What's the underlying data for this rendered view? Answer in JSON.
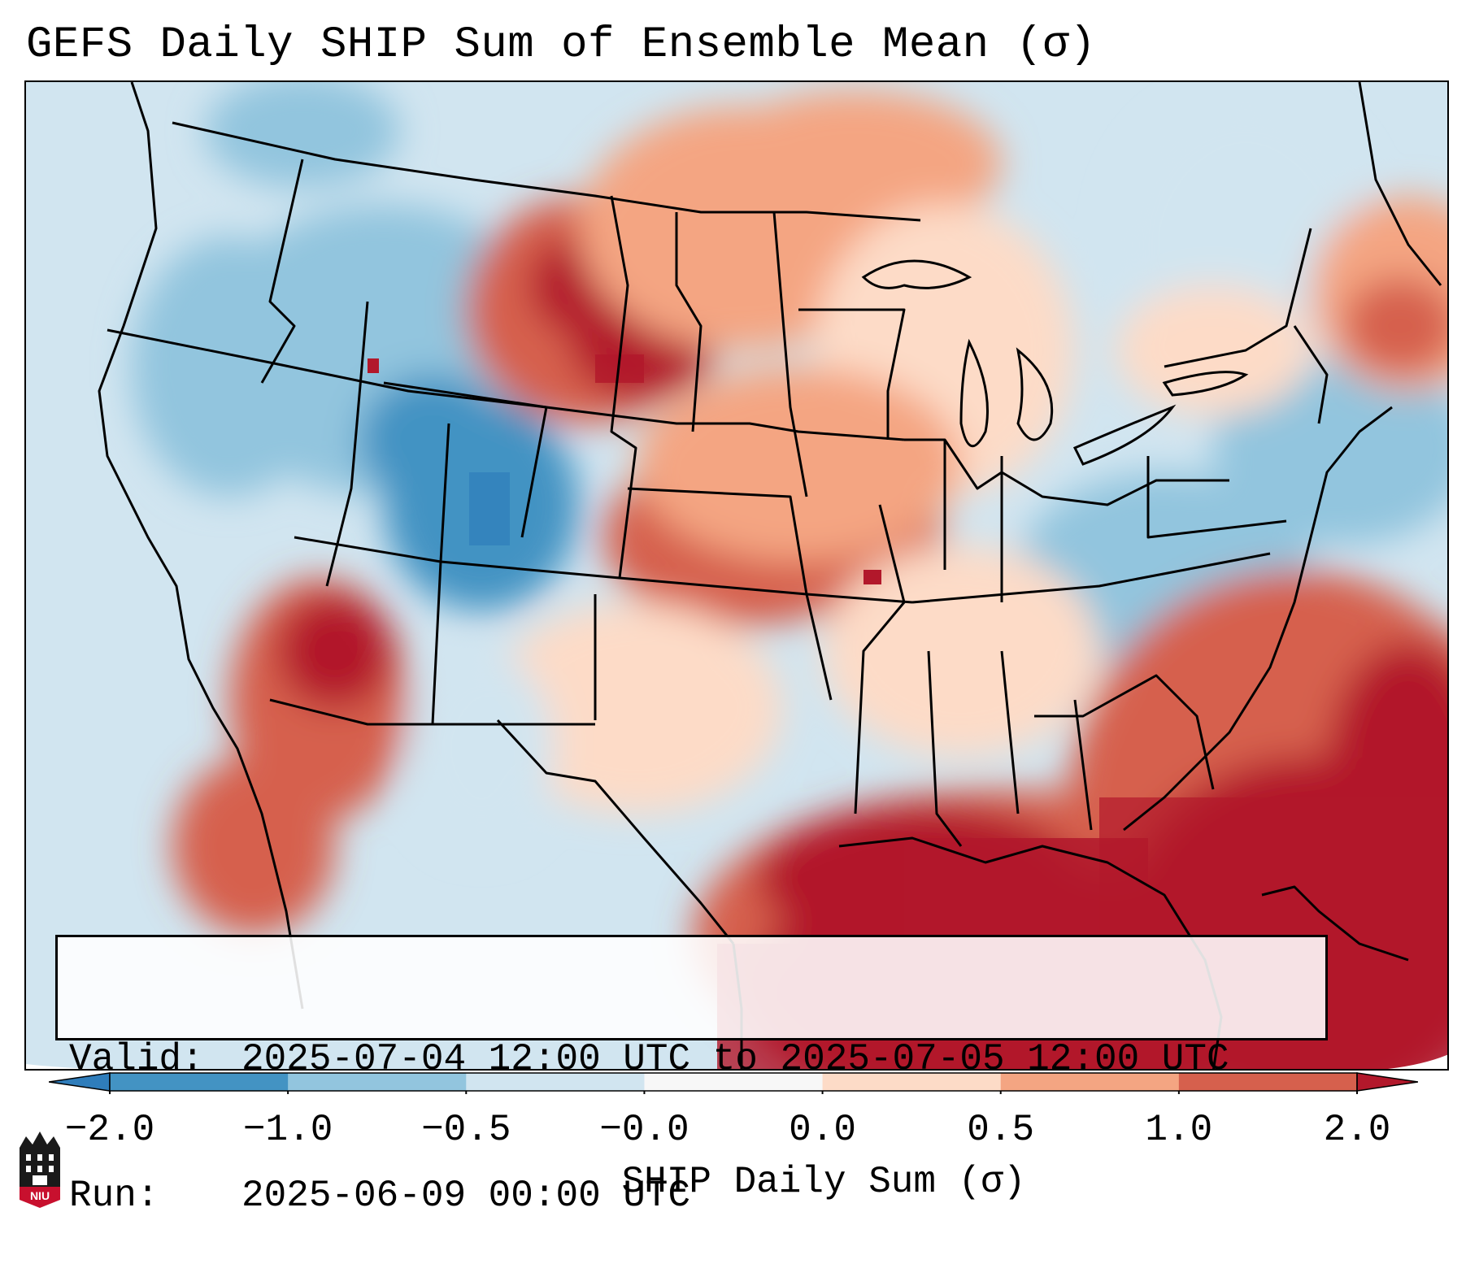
{
  "title": "GEFS Daily SHIP Sum of Ensemble Mean (σ)",
  "valid_label": "Valid:",
  "valid_value": "2025-07-04 12:00 UTC to 2025-07-05 12:00 UTC",
  "run_label": "Run:",
  "run_value": "2025-06-09 00:00 UTC",
  "colorbar": {
    "label": "SHIP Daily Sum (σ)",
    "ticks": [
      "−2.0",
      "−1.0",
      "−0.5",
      "−0.0",
      "0.0",
      "0.5",
      "1.0",
      "2.0"
    ],
    "colors": [
      "#2f7dbb",
      "#4393c3",
      "#92c5de",
      "#d1e5f0",
      "#f7f7f7",
      "#fddbc7",
      "#f4a582",
      "#d6604d",
      "#b2182b"
    ]
  },
  "logo_text": "NIU",
  "icons": [
    "niu-logo-icon"
  ]
}
